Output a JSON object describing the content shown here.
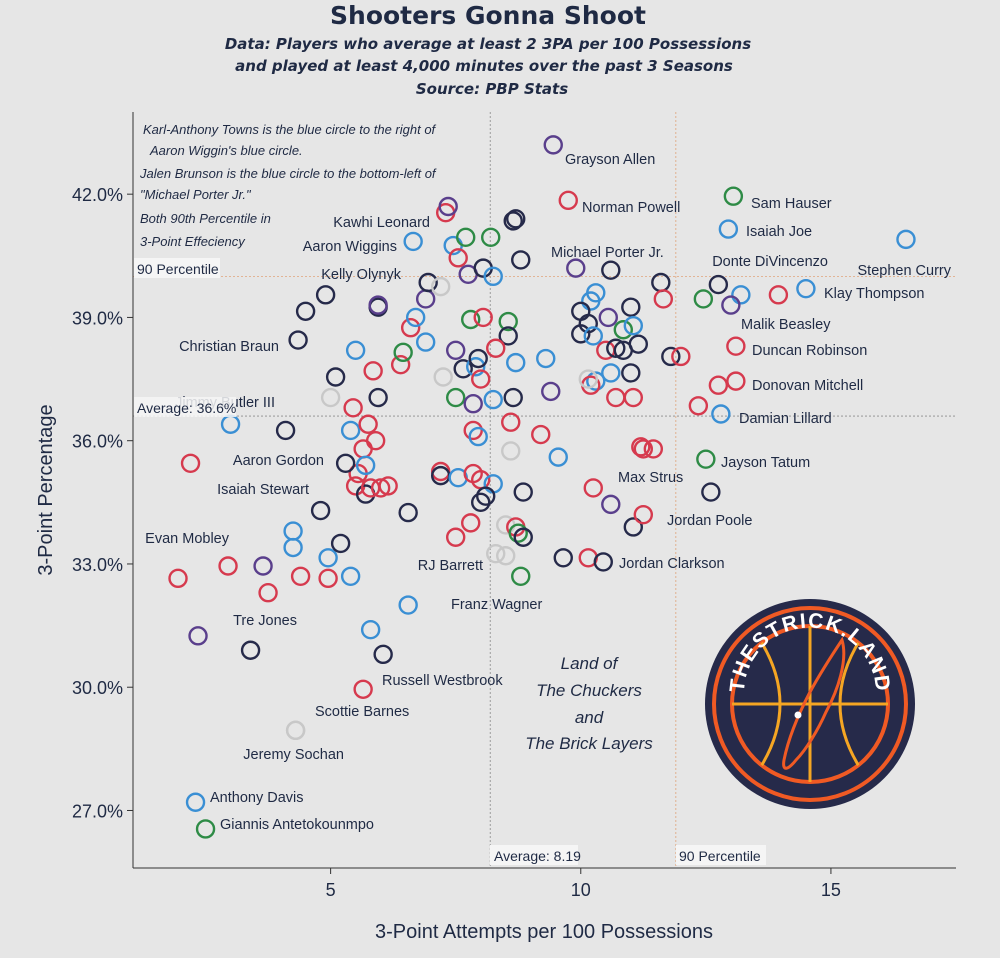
{
  "chart_data": {
    "type": "scatter",
    "title": "Shooters Gonna Shoot",
    "subtitle": [
      "Data: Players who average at least 2 3PA per 100 Possessions",
      "and played at least 4,000 minutes over the past 3 Seasons",
      "Source: PBP Stats"
    ],
    "xlabel": "3-Point Attempts per 100 Possessions",
    "ylabel": "3-Point Percentage",
    "xlim": [
      1.05,
      17.5
    ],
    "ylim": [
      25.6,
      44.0
    ],
    "xticks": [
      5,
      10,
      15
    ],
    "yticks": [
      27.0,
      30.0,
      33.0,
      36.0,
      39.0,
      42.0
    ],
    "ytick_labels": [
      "27.0%",
      "30.0%",
      "33.0%",
      "36.0%",
      "39.0%",
      "42.0%"
    ],
    "reference_lines": {
      "x_average": {
        "value": 8.19,
        "label": "Average: 8.19"
      },
      "x_90th": {
        "value": 11.9,
        "label": "90 Percentile"
      },
      "y_average": {
        "value": 36.6,
        "label": "Average: 36.6%"
      },
      "y_90th": {
        "value": 40.0,
        "label": "90 Percentile"
      }
    },
    "annotation_lines": [
      "Karl-Anthony Towns is the blue circle to the right of",
      "Aaron Wiggin's blue circle.",
      "Jalen Brunson is the blue circle to the bottom-left of",
      "\"Michael Porter Jr.\"",
      "Both 90th Percentile in",
      "3-Point Effeciency"
    ],
    "quadrant_label": [
      "Land of",
      "The Chuckers",
      "and",
      "The Brick Layers"
    ],
    "logo_text": "THESTRICK.LAND",
    "colors": {
      "navy": "#262a4a",
      "red": "#d63a4e",
      "blue": "#3a8fd4",
      "green": "#2e8b46",
      "purple": "#5a3f8c",
      "gray": "#c8c8c8",
      "background": "#e6e6e6",
      "reference_line": "#e0a37a",
      "logo_ring": "#f05a24",
      "logo_line": "#f5a623"
    },
    "labeled_points": [
      {
        "name": "Grayson Allen",
        "x": 9.45,
        "y": 43.2,
        "color": "purple"
      },
      {
        "name": "Norman Powell",
        "x": 9.75,
        "y": 41.85,
        "color": "red"
      },
      {
        "name": "Sam Hauser",
        "x": 13.05,
        "y": 41.95,
        "color": "green"
      },
      {
        "name": "Isaiah Joe",
        "x": 12.95,
        "y": 41.15,
        "color": "blue"
      },
      {
        "name": "Kawhi Leonard",
        "x": 7.35,
        "y": 41.7,
        "color": "purple"
      },
      {
        "name": "Aaron Wiggins",
        "x": 6.65,
        "y": 40.85,
        "color": "blue"
      },
      {
        "name": "Michael Porter Jr.",
        "x": 8.65,
        "y": 41.35,
        "color": "navy"
      },
      {
        "name": "Stephen Curry",
        "x": 16.5,
        "y": 40.9,
        "color": "blue"
      },
      {
        "name": "Donte DiVincenzo",
        "x": 12.75,
        "y": 39.8,
        "color": "navy"
      },
      {
        "name": "Kelly Olynyk",
        "x": 7.2,
        "y": 39.75,
        "color": "gray"
      },
      {
        "name": "Klay Thompson",
        "x": 14.5,
        "y": 39.7,
        "color": "blue"
      },
      {
        "name": "Malik Beasley",
        "x": 13.0,
        "y": 39.3,
        "color": "purple"
      },
      {
        "name": "Christian Braun",
        "x": 4.35,
        "y": 38.45,
        "color": "navy"
      },
      {
        "name": "Duncan Robinson",
        "x": 13.1,
        "y": 38.3,
        "color": "red"
      },
      {
        "name": "Donovan Mitchell",
        "x": 13.1,
        "y": 37.45,
        "color": "red"
      },
      {
        "name": "Jimmy Butler III",
        "x": 5.0,
        "y": 37.05,
        "color": "gray"
      },
      {
        "name": "Damian Lillard",
        "x": 12.8,
        "y": 36.65,
        "color": "blue"
      },
      {
        "name": "Aaron Gordon",
        "x": 5.3,
        "y": 35.45,
        "color": "navy"
      },
      {
        "name": "Jayson Tatum",
        "x": 12.5,
        "y": 35.55,
        "color": "green"
      },
      {
        "name": "Max Strus",
        "x": 11.25,
        "y": 35.8,
        "color": "red"
      },
      {
        "name": "Isaiah Stewart",
        "x": 5.8,
        "y": 34.85,
        "color": "red"
      },
      {
        "name": "Jordan Poole",
        "x": 11.25,
        "y": 34.2,
        "color": "red"
      },
      {
        "name": "Evan Mobley",
        "x": 2.95,
        "y": 32.95,
        "color": "red"
      },
      {
        "name": "RJ Barrett",
        "x": 8.5,
        "y": 33.2,
        "color": "gray"
      },
      {
        "name": "Jordan Clarkson",
        "x": 10.45,
        "y": 33.05,
        "color": "navy"
      },
      {
        "name": "Franz Wagner",
        "x": 8.8,
        "y": 32.7,
        "color": "green"
      },
      {
        "name": "Tre Jones",
        "x": 3.4,
        "y": 30.9,
        "color": "navy"
      },
      {
        "name": "Russell Westbrook",
        "x": 5.65,
        "y": 29.95,
        "color": "red"
      },
      {
        "name": "Scottie Barnes",
        "x": 4.3,
        "y": 28.95,
        "color": "gray"
      },
      {
        "name": "Jeremy Sochan",
        "x": 4.3,
        "y": 28.95,
        "color": "gray"
      },
      {
        "name": "Anthony Davis",
        "x": 2.3,
        "y": 27.2,
        "color": "blue"
      },
      {
        "name": "Giannis Antetokounmpo",
        "x": 2.5,
        "y": 26.55,
        "color": "green"
      }
    ],
    "unlabeled_points": [
      {
        "x": 2.2,
        "y": 35.45,
        "color": "red"
      },
      {
        "x": 3.0,
        "y": 36.4,
        "color": "blue"
      },
      {
        "x": 4.1,
        "y": 36.25,
        "color": "navy"
      },
      {
        "x": 1.95,
        "y": 32.65,
        "color": "red"
      },
      {
        "x": 2.35,
        "y": 31.25,
        "color": "purple"
      },
      {
        "x": 3.65,
        "y": 32.95,
        "color": "purple"
      },
      {
        "x": 3.75,
        "y": 32.3,
        "color": "red"
      },
      {
        "x": 4.25,
        "y": 33.8,
        "color": "blue"
      },
      {
        "x": 4.25,
        "y": 33.4,
        "color": "blue"
      },
      {
        "x": 4.4,
        "y": 32.7,
        "color": "red"
      },
      {
        "x": 4.8,
        "y": 34.3,
        "color": "navy"
      },
      {
        "x": 4.95,
        "y": 33.15,
        "color": "blue"
      },
      {
        "x": 5.2,
        "y": 33.5,
        "color": "navy"
      },
      {
        "x": 4.95,
        "y": 32.65,
        "color": "red"
      },
      {
        "x": 5.4,
        "y": 32.7,
        "color": "blue"
      },
      {
        "x": 4.9,
        "y": 39.55,
        "color": "navy"
      },
      {
        "x": 4.5,
        "y": 39.15,
        "color": "navy"
      },
      {
        "x": 5.1,
        "y": 37.55,
        "color": "navy"
      },
      {
        "x": 5.45,
        "y": 36.8,
        "color": "red"
      },
      {
        "x": 5.4,
        "y": 36.25,
        "color": "blue"
      },
      {
        "x": 5.55,
        "y": 35.2,
        "color": "red"
      },
      {
        "x": 5.5,
        "y": 38.2,
        "color": "blue"
      },
      {
        "x": 5.95,
        "y": 39.25,
        "color": "navy"
      },
      {
        "x": 5.95,
        "y": 39.3,
        "color": "purple"
      },
      {
        "x": 5.95,
        "y": 37.05,
        "color": "navy"
      },
      {
        "x": 5.85,
        "y": 37.7,
        "color": "red"
      },
      {
        "x": 5.75,
        "y": 36.4,
        "color": "red"
      },
      {
        "x": 5.9,
        "y": 36.0,
        "color": "red"
      },
      {
        "x": 5.65,
        "y": 35.8,
        "color": "red"
      },
      {
        "x": 5.7,
        "y": 35.4,
        "color": "blue"
      },
      {
        "x": 5.5,
        "y": 34.9,
        "color": "red"
      },
      {
        "x": 5.7,
        "y": 34.7,
        "color": "navy"
      },
      {
        "x": 6.0,
        "y": 34.85,
        "color": "red"
      },
      {
        "x": 6.15,
        "y": 34.9,
        "color": "red"
      },
      {
        "x": 6.4,
        "y": 37.85,
        "color": "red"
      },
      {
        "x": 6.45,
        "y": 38.15,
        "color": "green"
      },
      {
        "x": 6.6,
        "y": 38.75,
        "color": "red"
      },
      {
        "x": 6.7,
        "y": 39.0,
        "color": "blue"
      },
      {
        "x": 6.9,
        "y": 39.45,
        "color": "purple"
      },
      {
        "x": 6.95,
        "y": 39.85,
        "color": "navy"
      },
      {
        "x": 6.9,
        "y": 38.4,
        "color": "blue"
      },
      {
        "x": 6.55,
        "y": 34.25,
        "color": "navy"
      },
      {
        "x": 6.55,
        "y": 32.0,
        "color": "blue"
      },
      {
        "x": 5.8,
        "y": 31.4,
        "color": "blue"
      },
      {
        "x": 6.05,
        "y": 30.8,
        "color": "navy"
      },
      {
        "x": 7.3,
        "y": 41.55,
        "color": "red"
      },
      {
        "x": 7.45,
        "y": 40.75,
        "color": "blue"
      },
      {
        "x": 7.55,
        "y": 40.45,
        "color": "red"
      },
      {
        "x": 7.7,
        "y": 40.95,
        "color": "green"
      },
      {
        "x": 7.75,
        "y": 40.05,
        "color": "purple"
      },
      {
        "x": 8.05,
        "y": 40.2,
        "color": "navy"
      },
      {
        "x": 8.25,
        "y": 40.0,
        "color": "blue"
      },
      {
        "x": 8.7,
        "y": 41.4,
        "color": "navy"
      },
      {
        "x": 8.8,
        "y": 40.4,
        "color": "navy"
      },
      {
        "x": 8.2,
        "y": 40.95,
        "color": "green"
      },
      {
        "x": 7.8,
        "y": 38.95,
        "color": "green"
      },
      {
        "x": 8.05,
        "y": 39.0,
        "color": "red"
      },
      {
        "x": 8.55,
        "y": 38.9,
        "color": "green"
      },
      {
        "x": 8.55,
        "y": 38.55,
        "color": "navy"
      },
      {
        "x": 8.3,
        "y": 38.25,
        "color": "red"
      },
      {
        "x": 7.5,
        "y": 38.2,
        "color": "purple"
      },
      {
        "x": 7.65,
        "y": 37.75,
        "color": "navy"
      },
      {
        "x": 7.9,
        "y": 37.8,
        "color": "blue"
      },
      {
        "x": 7.95,
        "y": 38.0,
        "color": "navy"
      },
      {
        "x": 8.0,
        "y": 37.5,
        "color": "red"
      },
      {
        "x": 7.25,
        "y": 37.55,
        "color": "gray"
      },
      {
        "x": 7.5,
        "y": 37.05,
        "color": "green"
      },
      {
        "x": 7.85,
        "y": 36.9,
        "color": "purple"
      },
      {
        "x": 8.25,
        "y": 37.0,
        "color": "blue"
      },
      {
        "x": 8.65,
        "y": 37.05,
        "color": "navy"
      },
      {
        "x": 8.7,
        "y": 37.9,
        "color": "blue"
      },
      {
        "x": 9.3,
        "y": 38.0,
        "color": "blue"
      },
      {
        "x": 8.6,
        "y": 36.45,
        "color": "red"
      },
      {
        "x": 7.85,
        "y": 36.25,
        "color": "red"
      },
      {
        "x": 7.95,
        "y": 36.1,
        "color": "blue"
      },
      {
        "x": 9.2,
        "y": 36.15,
        "color": "red"
      },
      {
        "x": 9.4,
        "y": 37.2,
        "color": "purple"
      },
      {
        "x": 8.6,
        "y": 35.75,
        "color": "gray"
      },
      {
        "x": 9.55,
        "y": 35.6,
        "color": "blue"
      },
      {
        "x": 7.2,
        "y": 35.25,
        "color": "red"
      },
      {
        "x": 7.2,
        "y": 35.15,
        "color": "navy"
      },
      {
        "x": 7.55,
        "y": 35.1,
        "color": "blue"
      },
      {
        "x": 7.85,
        "y": 35.2,
        "color": "red"
      },
      {
        "x": 8.0,
        "y": 35.05,
        "color": "red"
      },
      {
        "x": 8.25,
        "y": 34.95,
        "color": "blue"
      },
      {
        "x": 8.1,
        "y": 34.65,
        "color": "navy"
      },
      {
        "x": 8.0,
        "y": 34.5,
        "color": "navy"
      },
      {
        "x": 8.85,
        "y": 34.75,
        "color": "navy"
      },
      {
        "x": 7.8,
        "y": 34.0,
        "color": "red"
      },
      {
        "x": 7.5,
        "y": 33.65,
        "color": "red"
      },
      {
        "x": 8.5,
        "y": 33.95,
        "color": "gray"
      },
      {
        "x": 8.7,
        "y": 33.9,
        "color": "red"
      },
      {
        "x": 8.75,
        "y": 33.75,
        "color": "green"
      },
      {
        "x": 8.85,
        "y": 33.65,
        "color": "navy"
      },
      {
        "x": 8.3,
        "y": 33.25,
        "color": "gray"
      },
      {
        "x": 9.65,
        "y": 33.15,
        "color": "navy"
      },
      {
        "x": 9.9,
        "y": 40.2,
        "color": "purple"
      },
      {
        "x": 10.6,
        "y": 40.15,
        "color": "navy"
      },
      {
        "x": 10.3,
        "y": 39.6,
        "color": "blue"
      },
      {
        "x": 10.2,
        "y": 39.4,
        "color": "blue"
      },
      {
        "x": 10.0,
        "y": 39.15,
        "color": "navy"
      },
      {
        "x": 10.15,
        "y": 38.85,
        "color": "navy"
      },
      {
        "x": 10.55,
        "y": 39.0,
        "color": "purple"
      },
      {
        "x": 10.0,
        "y": 38.6,
        "color": "navy"
      },
      {
        "x": 10.25,
        "y": 38.55,
        "color": "blue"
      },
      {
        "x": 10.5,
        "y": 38.2,
        "color": "red"
      },
      {
        "x": 10.7,
        "y": 38.25,
        "color": "navy"
      },
      {
        "x": 10.85,
        "y": 38.7,
        "color": "green"
      },
      {
        "x": 11.0,
        "y": 39.25,
        "color": "navy"
      },
      {
        "x": 11.05,
        "y": 38.8,
        "color": "blue"
      },
      {
        "x": 11.15,
        "y": 38.35,
        "color": "navy"
      },
      {
        "x": 10.85,
        "y": 38.2,
        "color": "navy"
      },
      {
        "x": 11.6,
        "y": 39.85,
        "color": "navy"
      },
      {
        "x": 11.8,
        "y": 38.05,
        "color": "navy"
      },
      {
        "x": 12.0,
        "y": 38.05,
        "color": "red"
      },
      {
        "x": 11.65,
        "y": 39.45,
        "color": "red"
      },
      {
        "x": 12.45,
        "y": 39.45,
        "color": "green"
      },
      {
        "x": 13.2,
        "y": 39.55,
        "color": "blue"
      },
      {
        "x": 13.95,
        "y": 39.55,
        "color": "red"
      },
      {
        "x": 11.0,
        "y": 37.65,
        "color": "navy"
      },
      {
        "x": 10.6,
        "y": 37.65,
        "color": "blue"
      },
      {
        "x": 10.3,
        "y": 37.45,
        "color": "blue"
      },
      {
        "x": 10.2,
        "y": 37.35,
        "color": "red"
      },
      {
        "x": 10.15,
        "y": 37.5,
        "color": "gray"
      },
      {
        "x": 10.7,
        "y": 37.05,
        "color": "red"
      },
      {
        "x": 11.05,
        "y": 37.05,
        "color": "red"
      },
      {
        "x": 12.35,
        "y": 36.85,
        "color": "red"
      },
      {
        "x": 12.75,
        "y": 37.35,
        "color": "red"
      },
      {
        "x": 11.2,
        "y": 35.85,
        "color": "red"
      },
      {
        "x": 11.45,
        "y": 35.8,
        "color": "red"
      },
      {
        "x": 10.25,
        "y": 34.85,
        "color": "red"
      },
      {
        "x": 10.6,
        "y": 34.45,
        "color": "purple"
      },
      {
        "x": 10.15,
        "y": 33.15,
        "color": "red"
      },
      {
        "x": 12.6,
        "y": 34.75,
        "color": "navy"
      },
      {
        "x": 11.05,
        "y": 33.9,
        "color": "navy"
      }
    ]
  }
}
